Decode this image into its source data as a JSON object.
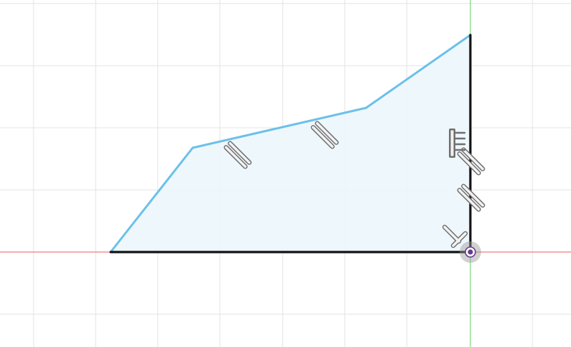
{
  "view": {
    "type": "sketch-canvas",
    "background": "#ffffff",
    "colors": {
      "grid": "#e3e3e3",
      "x_axis": "#ef7b7b",
      "y_axis": "#78d878",
      "constrained_line": "#121212",
      "unconstrained_line": "#6cc0ea",
      "profile_fill": "#ecf6fc",
      "constraint_glyph": "#6f6f6f",
      "origin": "#6a3a92"
    }
  },
  "sketch": {
    "profile": "closed",
    "constraints": [
      {
        "kind": "equal",
        "icon": "equal-constraint-icon"
      },
      {
        "kind": "equal",
        "icon": "equal-constraint-icon"
      },
      {
        "kind": "equal",
        "icon": "equal-constraint-icon"
      },
      {
        "kind": "equal",
        "icon": "equal-constraint-icon"
      },
      {
        "kind": "vertical",
        "icon": "vertical-constraint-icon"
      },
      {
        "kind": "perpendicular",
        "icon": "perpendicular-constraint-icon"
      }
    ],
    "origin_icon": "sketch-origin-icon"
  }
}
